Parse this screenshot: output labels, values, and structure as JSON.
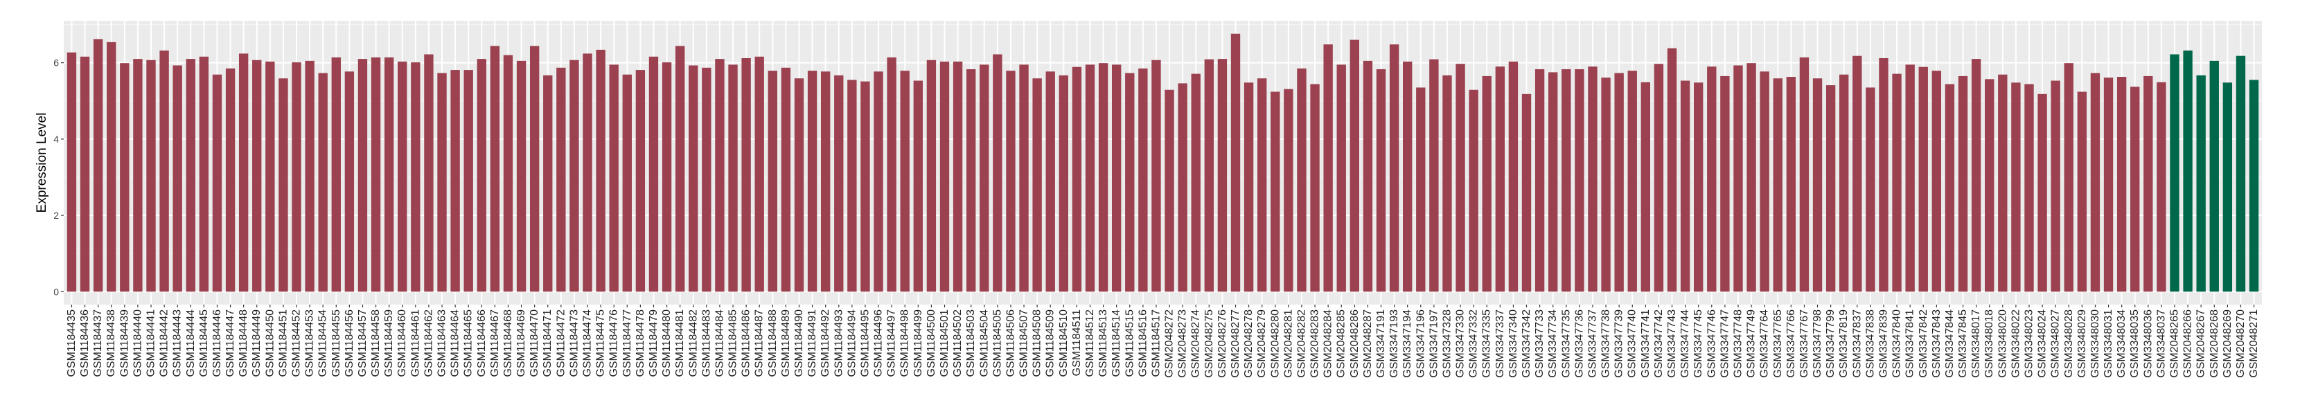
{
  "chart_data": {
    "type": "bar",
    "title": "",
    "xlabel": "",
    "ylabel": "Expression Level",
    "ylim": [
      -0.34,
      7.1
    ],
    "yticks": [
      0,
      2,
      4,
      6
    ],
    "grid": true,
    "legend": "none",
    "colors": {
      "group1": "#9B4150",
      "group2": "#00684A",
      "panel": "#EBEBEB",
      "grid": "#FFFFFF"
    },
    "categories": [
      "GSM1184435",
      "GSM1184436",
      "GSM1184437",
      "GSM1184438",
      "GSM1184439",
      "GSM1184440",
      "GSM1184441",
      "GSM1184442",
      "GSM1184443",
      "GSM1184444",
      "GSM1184445",
      "GSM1184446",
      "GSM1184447",
      "GSM1184448",
      "GSM1184449",
      "GSM1184450",
      "GSM1184451",
      "GSM1184452",
      "GSM1184453",
      "GSM1184454",
      "GSM1184455",
      "GSM1184456",
      "GSM1184457",
      "GSM1184458",
      "GSM1184459",
      "GSM1184460",
      "GSM1184461",
      "GSM1184462",
      "GSM1184463",
      "GSM1184464",
      "GSM1184465",
      "GSM1184466",
      "GSM1184467",
      "GSM1184468",
      "GSM1184469",
      "GSM1184470",
      "GSM1184471",
      "GSM1184472",
      "GSM1184473",
      "GSM1184474",
      "GSM1184475",
      "GSM1184476",
      "GSM1184477",
      "GSM1184478",
      "GSM1184479",
      "GSM1184480",
      "GSM1184481",
      "GSM1184482",
      "GSM1184483",
      "GSM1184484",
      "GSM1184485",
      "GSM1184486",
      "GSM1184487",
      "GSM1184488",
      "GSM1184489",
      "GSM1184490",
      "GSM1184491",
      "GSM1184492",
      "GSM1184493",
      "GSM1184494",
      "GSM1184495",
      "GSM1184496",
      "GSM1184497",
      "GSM1184498",
      "GSM1184499",
      "GSM1184500",
      "GSM1184501",
      "GSM1184502",
      "GSM1184503",
      "GSM1184504",
      "GSM1184505",
      "GSM1184506",
      "GSM1184507",
      "GSM1184508",
      "GSM1184509",
      "GSM1184510",
      "GSM1184511",
      "GSM1184512",
      "GSM1184513",
      "GSM1184514",
      "GSM1184515",
      "GSM1184516",
      "GSM1184517",
      "GSM2048272",
      "GSM2048273",
      "GSM2048274",
      "GSM2048275",
      "GSM2048276",
      "GSM2048277",
      "GSM2048278",
      "GSM2048279",
      "GSM2048280",
      "GSM2048281",
      "GSM2048282",
      "GSM2048283",
      "GSM2048284",
      "GSM2048285",
      "GSM2048286",
      "GSM2048287",
      "GSM3347191",
      "GSM3347193",
      "GSM3347194",
      "GSM3347196",
      "GSM3347197",
      "GSM3347328",
      "GSM3347330",
      "GSM3347332",
      "GSM3347335",
      "GSM3347337",
      "GSM3347340",
      "GSM3347342",
      "GSM3347733",
      "GSM3347734",
      "GSM3347735",
      "GSM3347736",
      "GSM3347737",
      "GSM3347738",
      "GSM3347739",
      "GSM3347740",
      "GSM3347741",
      "GSM3347742",
      "GSM3347743",
      "GSM3347744",
      "GSM3347745",
      "GSM3347746",
      "GSM3347747",
      "GSM3347748",
      "GSM3347749",
      "GSM3347764",
      "GSM3347765",
      "GSM3347766",
      "GSM3347767",
      "GSM3347798",
      "GSM3347799",
      "GSM3347819",
      "GSM3347837",
      "GSM3347838",
      "GSM3347839",
      "GSM3347840",
      "GSM3347841",
      "GSM3347842",
      "GSM3347843",
      "GSM3347844",
      "GSM3347845",
      "GSM3348017",
      "GSM3348018",
      "GSM3348020",
      "GSM3348022",
      "GSM3348023",
      "GSM3348024",
      "GSM3348027",
      "GSM3348028",
      "GSM3348029",
      "GSM3348030",
      "GSM3348031",
      "GSM3348034",
      "GSM3348035",
      "GSM3348036",
      "GSM3348037",
      "GSM2048265",
      "GSM2048266",
      "GSM2048267",
      "GSM2048268",
      "GSM2048269",
      "GSM2048270",
      "GSM2048271"
    ],
    "values": [
      6.27,
      6.16,
      6.62,
      6.54,
      5.99,
      6.1,
      6.07,
      6.32,
      5.93,
      6.1,
      6.16,
      5.69,
      5.85,
      6.24,
      6.07,
      6.03,
      5.59,
      6.01,
      6.05,
      5.73,
      6.14,
      5.77,
      6.1,
      6.14,
      6.14,
      6.03,
      6.01,
      6.22,
      5.73,
      5.81,
      5.81,
      6.1,
      6.44,
      6.2,
      6.05,
      6.44,
      5.67,
      5.87,
      6.07,
      6.24,
      6.34,
      5.95,
      5.69,
      5.81,
      6.16,
      6.01,
      6.44,
      5.93,
      5.87,
      6.1,
      5.95,
      6.12,
      6.16,
      5.79,
      5.87,
      5.59,
      5.79,
      5.77,
      5.67,
      5.55,
      5.51,
      5.77,
      6.14,
      5.79,
      5.53,
      6.07,
      6.03,
      6.03,
      5.83,
      5.95,
      6.22,
      5.79,
      5.95,
      5.59,
      5.77,
      5.67,
      5.89,
      5.95,
      5.99,
      5.95,
      5.73,
      5.85,
      6.07,
      5.29,
      5.46,
      5.71,
      6.09,
      6.1,
      6.76,
      5.48,
      5.59,
      5.24,
      5.31,
      5.85,
      5.44,
      6.48,
      5.95,
      6.6,
      6.05,
      5.83,
      6.48,
      6.03,
      5.35,
      6.09,
      5.67,
      5.97,
      5.29,
      5.65,
      5.9,
      6.03,
      5.18,
      5.83,
      5.75,
      5.83,
      5.83,
      5.9,
      5.61,
      5.73,
      5.79,
      5.49,
      5.97,
      6.38,
      5.53,
      5.48,
      5.9,
      5.65,
      5.93,
      5.99,
      5.77,
      5.59,
      5.63,
      6.14,
      5.59,
      5.41,
      5.69,
      6.18,
      5.35,
      6.12,
      5.71,
      5.95,
      5.89,
      5.79,
      5.44,
      5.65,
      6.1,
      5.57,
      5.69,
      5.48,
      5.44,
      5.18,
      5.53,
      5.99,
      5.24,
      5.73,
      5.61,
      5.63,
      5.37,
      5.65,
      5.49,
      6.22,
      6.32,
      5.67,
      6.05,
      5.48,
      6.18,
      5.55
    ],
    "groups": [
      {
        "color_key": "group1",
        "count": 159
      },
      {
        "color_key": "group2",
        "count": 7
      }
    ]
  }
}
